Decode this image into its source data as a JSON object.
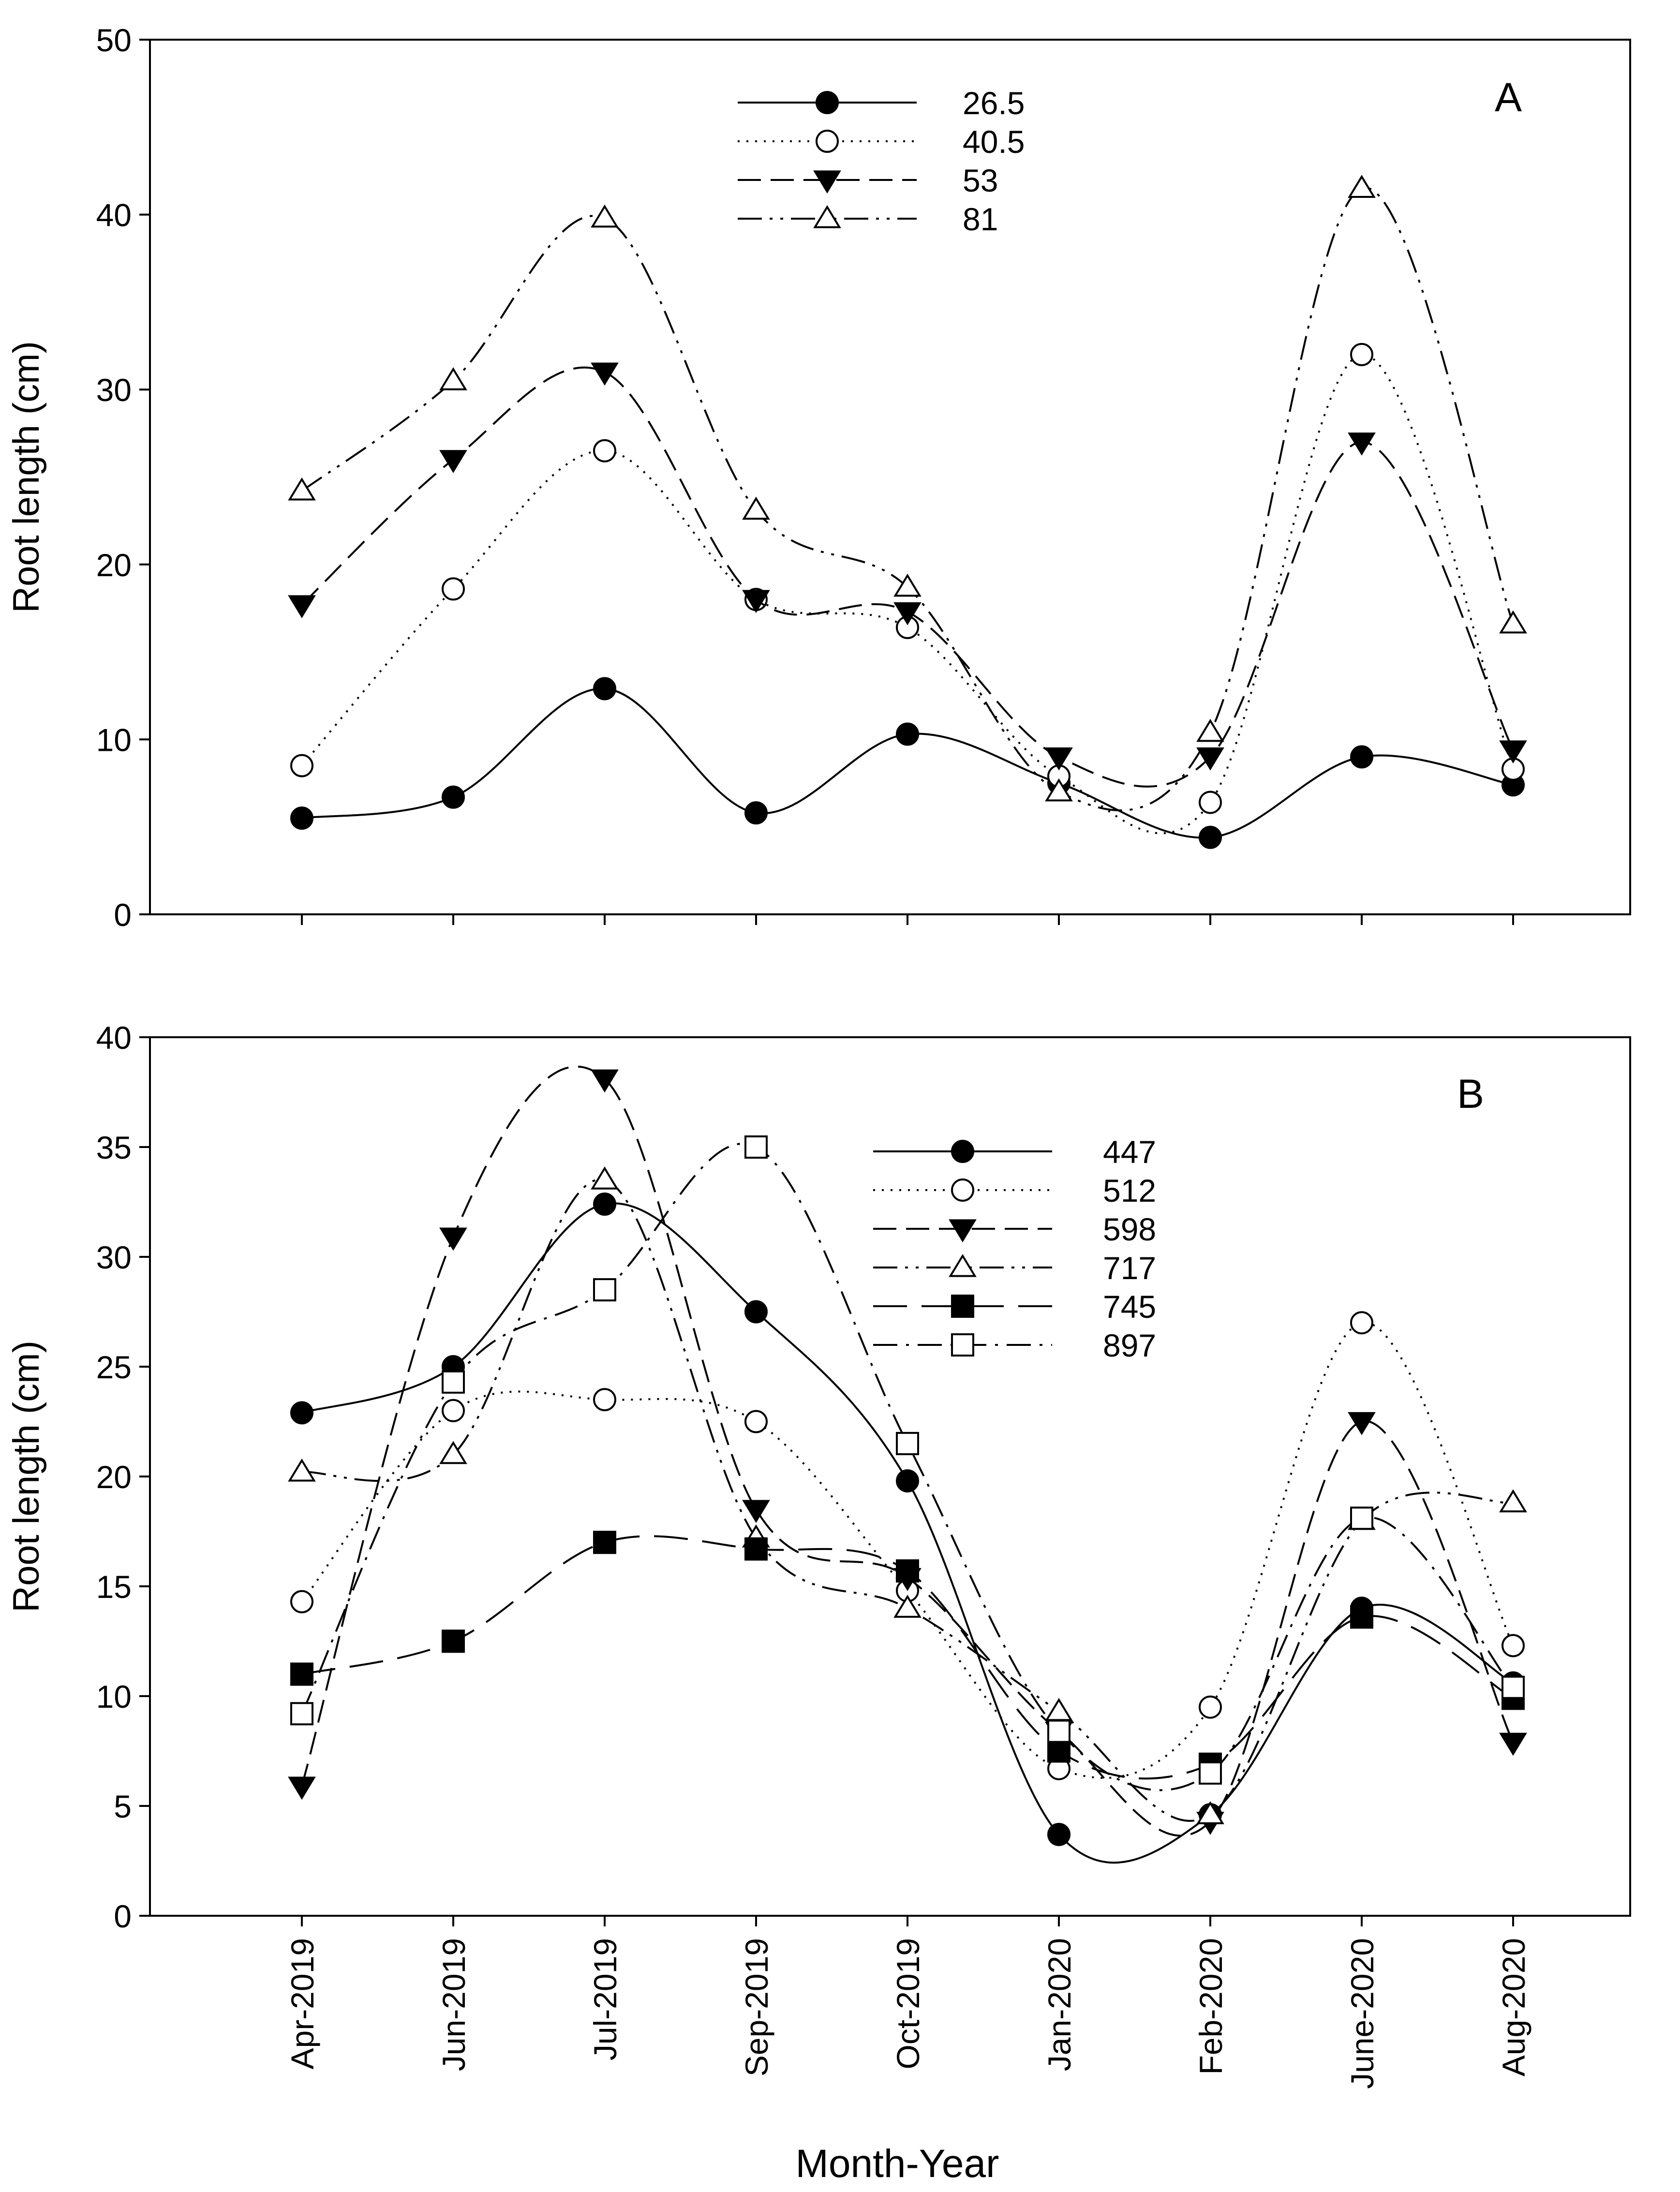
{
  "figure": {
    "xlabel": "Month-Year"
  },
  "chart_data": [
    {
      "type": "line",
      "panel_label": "A",
      "ylabel": "Root length (cm)",
      "ylim": [
        0,
        50
      ],
      "yticks": [
        0,
        10,
        20,
        30,
        40,
        50
      ],
      "categories": [
        "Apr-2019",
        "Jun-2019",
        "Jul-2019",
        "Sep-2019",
        "Oct-2019",
        "Jan-2020",
        "Feb-2020",
        "June-2020",
        "Aug-2020"
      ],
      "legend_position": "top-center",
      "series": [
        {
          "name": "26.5",
          "marker": "circle-filled",
          "dash": "solid",
          "values": [
            5.5,
            6.7,
            12.9,
            5.8,
            10.3,
            7.5,
            4.4,
            9.0,
            7.4
          ]
        },
        {
          "name": "40.5",
          "marker": "circle-open",
          "dash": "dotted",
          "values": [
            8.5,
            18.6,
            26.5,
            18.0,
            16.4,
            7.9,
            6.4,
            32.0,
            8.3
          ]
        },
        {
          "name": "53",
          "marker": "triangle-down-filled",
          "dash": "long-dash",
          "values": [
            17.7,
            26.0,
            31.0,
            18.0,
            17.3,
            9.0,
            9.0,
            27.0,
            9.4
          ]
        },
        {
          "name": "81",
          "marker": "triangle-up-open",
          "dash": "dash-dot-dot",
          "values": [
            24.2,
            30.5,
            39.8,
            23.1,
            18.7,
            7.0,
            10.4,
            41.5,
            16.6
          ]
        }
      ]
    },
    {
      "type": "line",
      "panel_label": "B",
      "ylabel": "Root length (cm)",
      "ylim": [
        0,
        40
      ],
      "yticks": [
        0,
        5,
        10,
        15,
        20,
        25,
        30,
        35,
        40
      ],
      "categories": [
        "Apr-2019",
        "Jun-2019",
        "Jul-2019",
        "Sep-2019",
        "Oct-2019",
        "Jan-2020",
        "Feb-2020",
        "June-2020",
        "Aug-2020"
      ],
      "legend_position": "top-right",
      "series": [
        {
          "name": "447",
          "marker": "circle-filled",
          "dash": "solid",
          "values": [
            22.9,
            25.0,
            32.4,
            27.5,
            19.8,
            3.7,
            4.6,
            14.0,
            10.6
          ]
        },
        {
          "name": "512",
          "marker": "circle-open",
          "dash": "dotted",
          "values": [
            14.3,
            23.0,
            23.5,
            22.5,
            14.8,
            6.7,
            9.5,
            27.0,
            12.3
          ]
        },
        {
          "name": "598",
          "marker": "triangle-down-filled",
          "dash": "long-dash",
          "values": [
            5.9,
            30.9,
            38.1,
            18.5,
            15.4,
            8.4,
            4.3,
            22.5,
            7.9
          ]
        },
        {
          "name": "717",
          "marker": "triangle-up-open",
          "dash": "dash-dot-dot",
          "values": [
            20.2,
            21.0,
            33.5,
            17.2,
            14.0,
            9.3,
            4.6,
            18.0,
            18.8
          ]
        },
        {
          "name": "745",
          "marker": "square-filled",
          "dash": "long-gap-dash",
          "values": [
            11.0,
            12.5,
            17.0,
            16.7,
            15.7,
            7.5,
            6.9,
            13.6,
            9.9
          ]
        },
        {
          "name": "897",
          "marker": "square-open",
          "dash": "dash-dot",
          "values": [
            9.2,
            24.3,
            28.5,
            35.0,
            21.5,
            8.4,
            6.5,
            18.1,
            10.4
          ]
        }
      ]
    }
  ]
}
